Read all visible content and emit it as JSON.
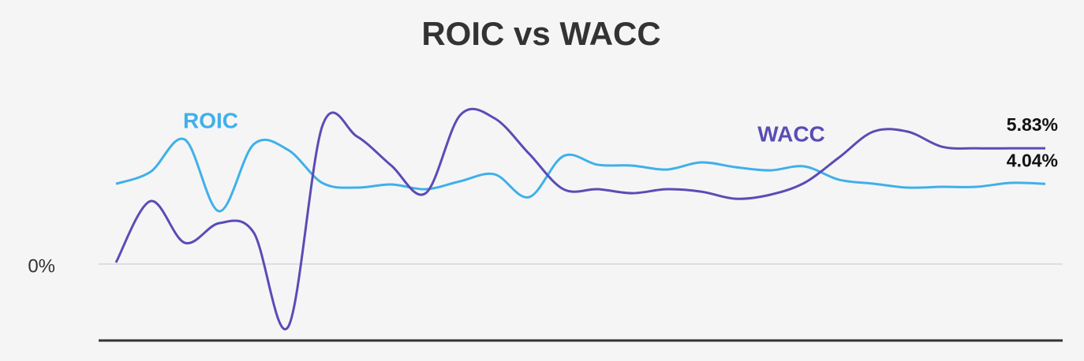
{
  "chart_data": {
    "type": "line",
    "title": "ROIC vs WACC",
    "categories": [
      null,
      null,
      null,
      null,
      null,
      null,
      null,
      null,
      null,
      null,
      null,
      null,
      null,
      null,
      null,
      null,
      null,
      null,
      null,
      null,
      null,
      null,
      null,
      null,
      null,
      null,
      null,
      null
    ],
    "series": [
      {
        "name": "ROIC",
        "color": "#3fb0ea",
        "values": [
          4.04,
          4.64,
          6.27,
          2.66,
          6.03,
          5.75,
          4.08,
          3.85,
          4.01,
          3.77,
          4.17,
          4.52,
          3.37,
          5.44,
          5.0,
          4.96,
          4.76,
          5.12,
          4.88,
          4.72,
          4.92,
          4.25,
          4.05,
          3.85,
          3.89,
          3.89,
          4.09,
          4.04
        ],
        "value_labels": [
          null,
          null,
          null,
          null,
          null,
          null,
          null,
          null,
          null,
          null,
          null,
          null,
          null,
          null,
          null,
          null,
          null,
          null,
          null,
          null,
          null,
          null,
          null,
          null,
          null,
          null,
          null,
          "4.04%"
        ]
      },
      {
        "name": "WACC",
        "color": "#5a4cb5",
        "values": [
          0.08,
          3.17,
          1.07,
          2.06,
          1.59,
          -3.17,
          6.98,
          6.43,
          4.96,
          3.57,
          7.5,
          7.34,
          5.56,
          3.77,
          3.77,
          3.57,
          3.77,
          3.65,
          3.29,
          3.49,
          4.09,
          5.36,
          6.67,
          6.67,
          5.91,
          5.83,
          5.83,
          5.83
        ],
        "value_labels": [
          null,
          null,
          null,
          null,
          null,
          null,
          null,
          null,
          null,
          null,
          null,
          null,
          null,
          null,
          null,
          null,
          null,
          null,
          null,
          null,
          null,
          null,
          null,
          null,
          null,
          null,
          null,
          "5.83%"
        ]
      }
    ],
    "ylim": [
      -3.85,
      9.33
    ],
    "yticks": [
      {
        "value": 0,
        "label": "0%"
      }
    ],
    "grid": true
  }
}
